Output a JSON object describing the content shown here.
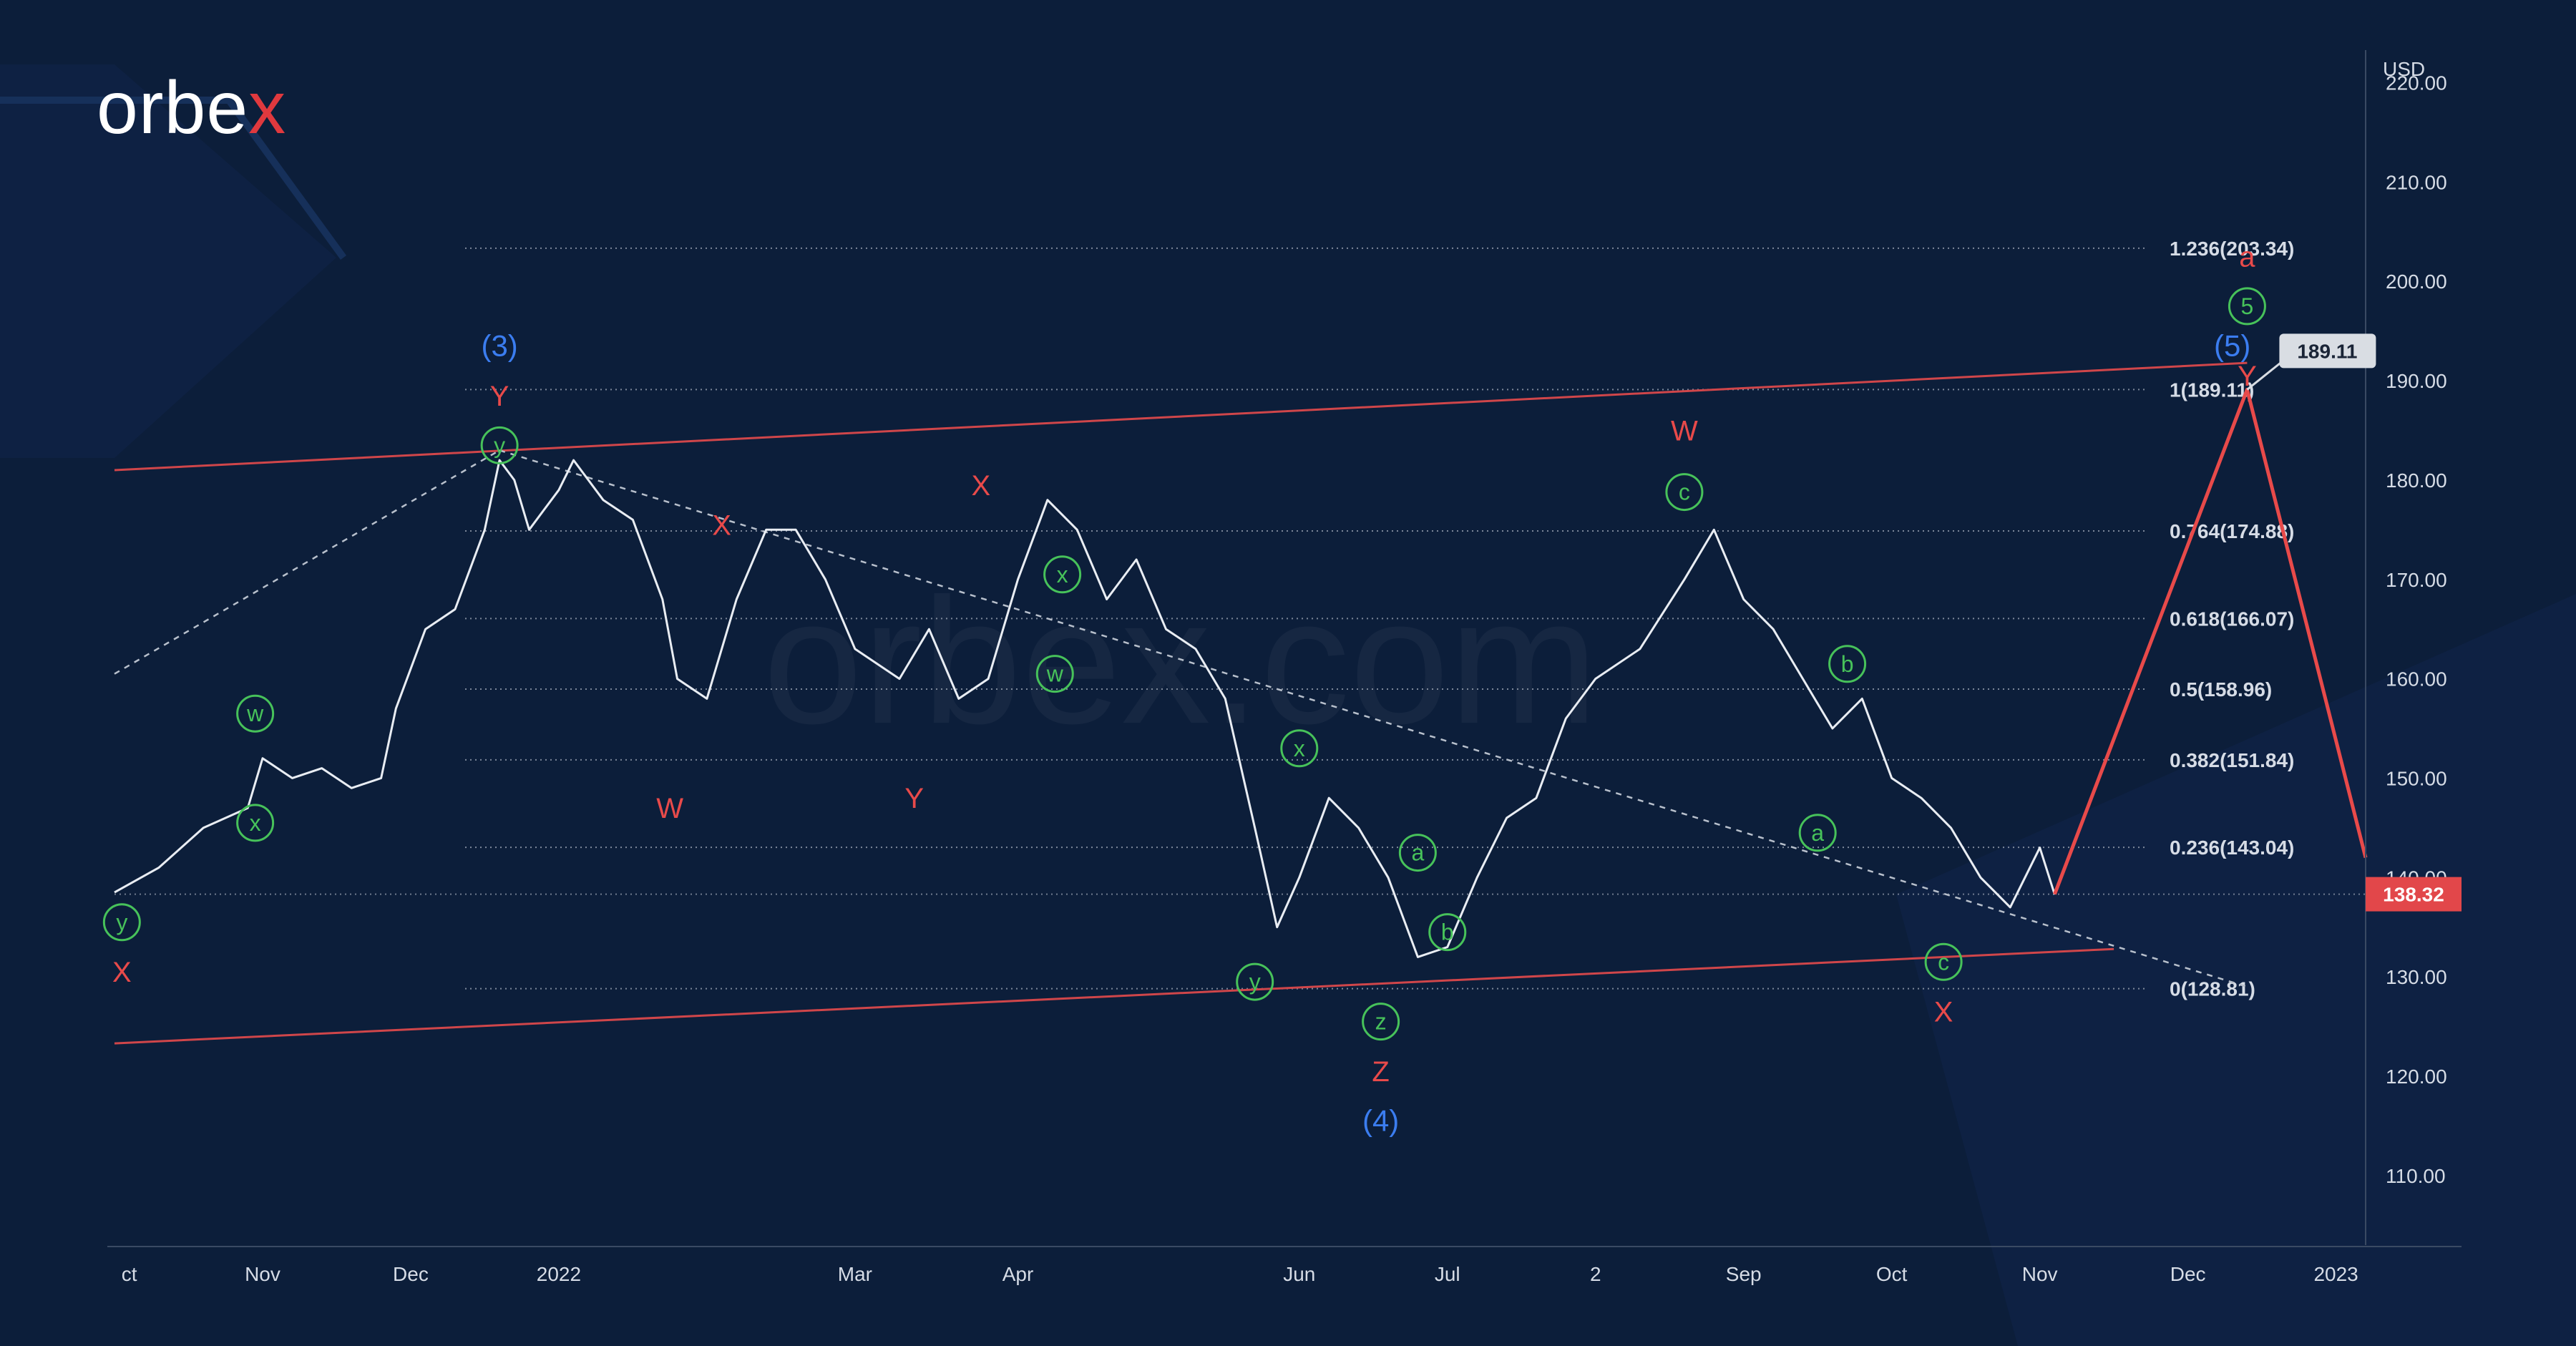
{
  "brand": {
    "logo_main": "orbe",
    "logo_x": "x",
    "watermark": "orbex.com"
  },
  "chart_data": {
    "type": "line",
    "currency": "USD",
    "y_ticks": [
      "220.00",
      "210.00",
      "200.00",
      "190.00",
      "180.00",
      "170.00",
      "160.00",
      "150.00",
      "140.00",
      "130.00",
      "120.00",
      "110.00"
    ],
    "y_tick_values": [
      220,
      210,
      200,
      190,
      180,
      170,
      160,
      150,
      140,
      130,
      120,
      110
    ],
    "ylim": [
      103,
      224
    ],
    "x_ticks": [
      {
        "label": "ct",
        "x": 0.1
      },
      {
        "label": "Nov",
        "x": 1.0
      },
      {
        "label": "Dec",
        "x": 2.0
      },
      {
        "label": "2022",
        "x": 3.0
      },
      {
        "label": "Mar",
        "x": 5.0
      },
      {
        "label": "Apr",
        "x": 6.1
      },
      {
        "label": "Jun",
        "x": 8.0
      },
      {
        "label": "Jul",
        "x": 9.0
      },
      {
        "label": "2",
        "x": 10.0
      },
      {
        "label": "Sep",
        "x": 11.0
      },
      {
        "label": "Oct",
        "x": 12.0
      },
      {
        "label": "Nov",
        "x": 13.0
      },
      {
        "label": "Dec",
        "x": 14.0
      },
      {
        "label": "2023",
        "x": 15.0
      }
    ],
    "xlim": [
      0,
      15.2
    ],
    "last_price": "138.32",
    "last_price_value": 138.32,
    "target_label": "189.11",
    "target_value": 189.11,
    "fib_levels": [
      {
        "label": "1.236(203.34)",
        "value": 203.34
      },
      {
        "label": "1(189.11)",
        "value": 189.11
      },
      {
        "label": "0.764(174.88)",
        "value": 174.88
      },
      {
        "label": "0.618(166.07)",
        "value": 166.07
      },
      {
        "label": "0.5(158.96)",
        "value": 158.96
      },
      {
        "label": "0.382(151.84)",
        "value": 151.84
      },
      {
        "label": "0.236(143.04)",
        "value": 143.04
      },
      {
        "label": "0(128.81)",
        "value": 128.81
      }
    ],
    "price_path": [
      [
        0.0,
        138.5
      ],
      [
        0.3,
        141
      ],
      [
        0.6,
        145
      ],
      [
        0.9,
        147
      ],
      [
        1.0,
        152
      ],
      [
        1.2,
        150
      ],
      [
        1.4,
        151
      ],
      [
        1.6,
        149
      ],
      [
        1.8,
        150
      ],
      [
        1.9,
        157
      ],
      [
        2.1,
        165
      ],
      [
        2.3,
        167
      ],
      [
        2.5,
        175
      ],
      [
        2.6,
        182
      ],
      [
        2.7,
        180
      ],
      [
        2.8,
        175
      ],
      [
        3.0,
        179
      ],
      [
        3.1,
        182
      ],
      [
        3.3,
        178
      ],
      [
        3.5,
        176
      ],
      [
        3.7,
        168
      ],
      [
        3.8,
        160
      ],
      [
        4.0,
        158
      ],
      [
        4.2,
        168
      ],
      [
        4.4,
        175
      ],
      [
        4.6,
        175
      ],
      [
        4.8,
        170
      ],
      [
        5.0,
        163
      ],
      [
        5.3,
        160
      ],
      [
        5.5,
        165
      ],
      [
        5.7,
        158
      ],
      [
        5.9,
        160
      ],
      [
        6.1,
        170
      ],
      [
        6.3,
        178
      ],
      [
        6.5,
        175
      ],
      [
        6.7,
        168
      ],
      [
        6.9,
        172
      ],
      [
        7.1,
        165
      ],
      [
        7.3,
        163
      ],
      [
        7.5,
        158
      ],
      [
        7.7,
        145
      ],
      [
        7.85,
        135
      ],
      [
        8.0,
        140
      ],
      [
        8.2,
        148
      ],
      [
        8.4,
        145
      ],
      [
        8.6,
        140
      ],
      [
        8.8,
        132
      ],
      [
        9.0,
        133
      ],
      [
        9.2,
        140
      ],
      [
        9.4,
        146
      ],
      [
        9.6,
        148
      ],
      [
        9.8,
        156
      ],
      [
        10.0,
        160
      ],
      [
        10.3,
        163
      ],
      [
        10.6,
        170
      ],
      [
        10.8,
        175
      ],
      [
        11.0,
        168
      ],
      [
        11.2,
        165
      ],
      [
        11.4,
        160
      ],
      [
        11.6,
        155
      ],
      [
        11.8,
        158
      ],
      [
        12.0,
        150
      ],
      [
        12.2,
        148
      ],
      [
        12.4,
        145
      ],
      [
        12.6,
        140
      ],
      [
        12.8,
        137
      ],
      [
        13.0,
        143
      ],
      [
        13.1,
        138.3
      ]
    ],
    "forecast_path": [
      [
        13.1,
        138.32
      ],
      [
        14.4,
        189.11
      ],
      [
        15.2,
        142
      ]
    ],
    "channel_upper": [
      [
        0.0,
        181
      ],
      [
        14.4,
        191.8
      ]
    ],
    "channel_lower": [
      [
        0.0,
        123.3
      ],
      [
        13.5,
        132.8
      ]
    ],
    "dashed_upper_from": [
      [
        0.0,
        160.5
      ],
      [
        2.6,
        183
      ]
    ],
    "dashed_trend": [
      [
        2.6,
        183
      ],
      [
        14.4,
        129
      ]
    ],
    "wave_labels": [
      {
        "text": "(3)",
        "style": "blue",
        "x": 2.6,
        "y": 193.5
      },
      {
        "text": "Y",
        "style": "red",
        "x": 2.6,
        "y": 188.5
      },
      {
        "text": "y",
        "style": "green-circle",
        "x": 2.6,
        "y": 183.5
      },
      {
        "text": "X",
        "style": "red",
        "x": 4.1,
        "y": 175.5
      },
      {
        "text": "W",
        "style": "red",
        "x": 3.75,
        "y": 147
      },
      {
        "text": "X",
        "style": "red",
        "x": 5.85,
        "y": 179.5
      },
      {
        "text": "Y",
        "style": "red",
        "x": 5.4,
        "y": 148
      },
      {
        "text": "x",
        "style": "green-circle",
        "x": 6.4,
        "y": 170.5
      },
      {
        "text": "w",
        "style": "green-circle",
        "x": 6.35,
        "y": 160.5
      },
      {
        "text": "x",
        "style": "green-circle",
        "x": 8.0,
        "y": 153
      },
      {
        "text": "y",
        "style": "green-circle",
        "x": 7.7,
        "y": 129.5
      },
      {
        "text": "a",
        "style": "green-circle",
        "x": 8.8,
        "y": 142.5
      },
      {
        "text": "b",
        "style": "green-circle",
        "x": 9.0,
        "y": 134.5
      },
      {
        "text": "z",
        "style": "green-circle",
        "x": 8.55,
        "y": 125.5
      },
      {
        "text": "Z",
        "style": "red",
        "x": 8.55,
        "y": 120.5
      },
      {
        "text": "(4)",
        "style": "blue",
        "x": 8.55,
        "y": 115.5
      },
      {
        "text": "W",
        "style": "red",
        "x": 10.6,
        "y": 185
      },
      {
        "text": "c",
        "style": "green-circle",
        "x": 10.6,
        "y": 178.8
      },
      {
        "text": "b",
        "style": "green-circle",
        "x": 11.7,
        "y": 161.5
      },
      {
        "text": "a",
        "style": "green-circle",
        "x": 11.5,
        "y": 144.5
      },
      {
        "text": "c",
        "style": "green-circle",
        "x": 12.35,
        "y": 131.5
      },
      {
        "text": "X",
        "style": "red",
        "x": 12.35,
        "y": 126.5
      },
      {
        "text": "w",
        "style": "green-circle",
        "x": 0.95,
        "y": 156.5
      },
      {
        "text": "x",
        "style": "green-circle",
        "x": 0.95,
        "y": 145.5
      },
      {
        "text": "y",
        "style": "green-circle",
        "x": 0.05,
        "y": 135.5
      },
      {
        "text": "X",
        "style": "red",
        "x": 0.05,
        "y": 130.5
      },
      {
        "text": "a",
        "style": "red",
        "x": 14.4,
        "y": 202.5
      },
      {
        "text": "5",
        "style": "green-circle",
        "x": 14.4,
        "y": 197.5
      },
      {
        "text": "(5)",
        "style": "blue",
        "x": 14.3,
        "y": 193.5
      },
      {
        "text": "Y",
        "style": "red",
        "x": 14.4,
        "y": 190.5
      }
    ]
  },
  "colors": {
    "background": "#0c1e3a",
    "price": "#e9edf3",
    "channel": "#d0464a",
    "forecast": "#e84a4a",
    "fib": "#9aa3b2",
    "dashed": "#b8c0cc",
    "price_badge": "#e2474a",
    "target_badge": "#d9dde3"
  }
}
